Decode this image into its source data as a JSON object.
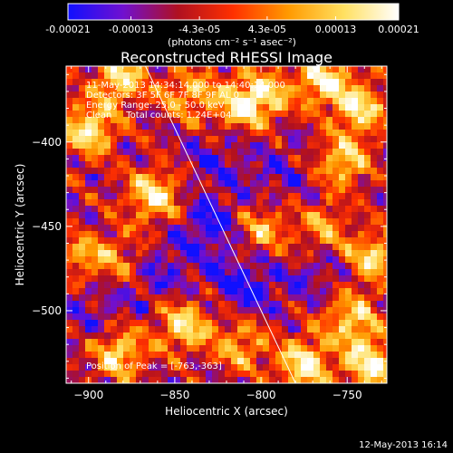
{
  "colorbar": {
    "tick_labels": [
      "-0.00021",
      "-0.00013",
      "-4.3e-05",
      "4.3e-05",
      "0.00013",
      "0.00021"
    ],
    "range": [
      -0.00021,
      0.00021
    ],
    "unit_label": "(photons cm⁻² s⁻¹ asec⁻²)",
    "colors": [
      "#1010ff",
      "#7010d0",
      "#b01020",
      "#ff3000",
      "#ff9a00",
      "#ffe060",
      "#ffffff"
    ]
  },
  "chart_data": {
    "type": "heatmap",
    "title": "Reconstructed RHESSI Image",
    "xlabel": "Heliocentric X (arcsec)",
    "ylabel": "Heliocentric Y (arcsec)",
    "xlim": [
      -913,
      -727
    ],
    "ylim": [
      -543,
      -355
    ],
    "x_ticks": [
      -900,
      -850,
      -800,
      -750
    ],
    "y_ticks": [
      -400,
      -450,
      -500
    ],
    "grid": false,
    "limb_line": [
      [
        -867,
        -355
      ],
      [
        -780,
        -543
      ]
    ],
    "annotations": [
      "11-May-2013 14:34:14.000 to 14:40:14.000",
      "Detectors: 3F 5F 6F 7F 8F 9F AL 0",
      "Energy Range: 25.0 - 50.0 keV",
      "Clean     Total counts: 1.24E+04"
    ],
    "peak_label": "Position of Peak = [-763,-363]",
    "peak": [
      -763,
      -363
    ],
    "hot_regions": [
      {
        "x": -900,
        "y": -392,
        "value": 1.0
      },
      {
        "x": -882,
        "y": -362,
        "value": 0.9
      },
      {
        "x": -862,
        "y": -432,
        "value": 1.0
      },
      {
        "x": -842,
        "y": -372,
        "value": 0.7
      },
      {
        "x": -812,
        "y": -378,
        "value": 0.8
      },
      {
        "x": -797,
        "y": -372,
        "value": 0.7
      },
      {
        "x": -764,
        "y": -363,
        "value": 0.95
      },
      {
        "x": -742,
        "y": -380,
        "value": 0.9
      },
      {
        "x": -752,
        "y": -412,
        "value": 0.8
      },
      {
        "x": -735,
        "y": -468,
        "value": 0.85
      },
      {
        "x": -748,
        "y": -505,
        "value": 0.85
      },
      {
        "x": -736,
        "y": -532,
        "value": 1.0
      },
      {
        "x": -775,
        "y": -532,
        "value": 1.0
      },
      {
        "x": -812,
        "y": -520,
        "value": 0.7
      },
      {
        "x": -845,
        "y": -508,
        "value": 0.9
      },
      {
        "x": -882,
        "y": -525,
        "value": 0.9
      },
      {
        "x": -902,
        "y": -468,
        "value": 0.6
      },
      {
        "x": -880,
        "y": -470,
        "value": 0.5
      },
      {
        "x": -800,
        "y": -452,
        "value": 0.7
      },
      {
        "x": -765,
        "y": -450,
        "value": 0.6
      }
    ],
    "cold_regions": [
      {
        "x": -830,
        "y": -450,
        "value": -1.0
      },
      {
        "x": -810,
        "y": -485,
        "value": -1.0
      },
      {
        "x": -860,
        "y": -478,
        "value": -0.8
      },
      {
        "x": -790,
        "y": -420,
        "value": -0.6
      },
      {
        "x": -895,
        "y": -500,
        "value": -0.6
      },
      {
        "x": -830,
        "y": -410,
        "value": -0.5
      },
      {
        "x": -770,
        "y": -478,
        "value": -0.5
      }
    ]
  },
  "footer": {
    "timestamp": "12-May-2013 16:14"
  }
}
